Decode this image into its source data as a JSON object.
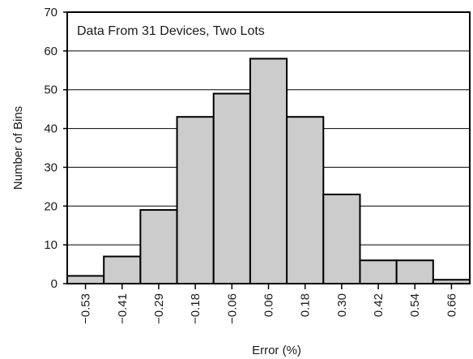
{
  "chart_data": {
    "type": "bar",
    "annotation": "Data From 31 Devices, Two Lots",
    "xlabel": "Error (%)",
    "ylabel": "Number of Bins",
    "categories": [
      "−0.53",
      "−0.41",
      "−0.29",
      "−0.18",
      "−0.06",
      "0.06",
      "0.18",
      "0.30",
      "0.42",
      "0.54",
      "0.66"
    ],
    "values": [
      2,
      7,
      19,
      43,
      49,
      58,
      43,
      23,
      6,
      6,
      1
    ],
    "ylim": [
      0,
      70
    ],
    "yticks": [
      0,
      10,
      20,
      30,
      40,
      50,
      60,
      70
    ],
    "grid": "horizontal",
    "bar_color": "#cccccc",
    "edge_color": "#000000"
  }
}
